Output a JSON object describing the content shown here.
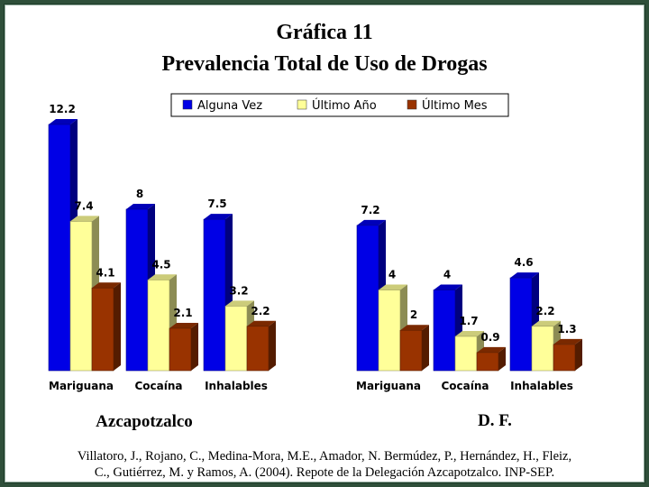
{
  "title_line1": "Gráfica 11",
  "title_line2": "Prevalencia Total de Uso de Drogas",
  "legend": [
    {
      "label": "Alguna Vez",
      "color": "#0000e6"
    },
    {
      "label": "Último Año",
      "color": "#ffff99"
    },
    {
      "label": "Último Mes",
      "color": "#993300"
    }
  ],
  "citation_line1": "Villatoro, J., Rojano, C., Medina-Mora, M.E., Amador, N. Bermúdez, P., Hernández, H., Fleiz,",
  "citation_line2": "C., Gutiérrez, M. y Ramos, A. (2004). Repote de la Delegación Azcapotzalco. INP-SEP.",
  "chart_data": [
    {
      "type": "bar",
      "panel": "Azcapotzalco",
      "categories": [
        "Mariguana",
        "Cocaína",
        "Inhalables"
      ],
      "series": [
        {
          "name": "Alguna Vez",
          "values": [
            12.2,
            8,
            7.5
          ]
        },
        {
          "name": "Último Año",
          "values": [
            7.4,
            4.5,
            3.2
          ]
        },
        {
          "name": "Último Mes",
          "values": [
            4.1,
            2.1,
            2.2
          ]
        }
      ],
      "grid": false,
      "legend_position": "top"
    },
    {
      "type": "bar",
      "panel": "D. F.",
      "categories": [
        "Mariguana",
        "Cocaína",
        "Inhalables"
      ],
      "series": [
        {
          "name": "Alguna Vez",
          "values": [
            7.2,
            4,
            4.6
          ]
        },
        {
          "name": "Último Año",
          "values": [
            4,
            1.7,
            2.2
          ]
        },
        {
          "name": "Último Mes",
          "values": [
            2,
            0.9,
            1.3
          ]
        }
      ],
      "grid": false,
      "legend_position": "top"
    }
  ]
}
